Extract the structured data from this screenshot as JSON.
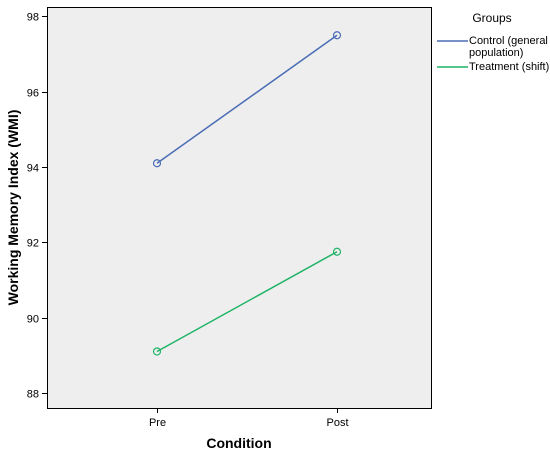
{
  "chart_data": {
    "type": "line",
    "xlabel": "Condition",
    "ylabel": "Working Memory Index (WMI)",
    "categories": [
      "Pre",
      "Post"
    ],
    "ylim": [
      87.6,
      98.25
    ],
    "yticks": [
      88,
      90,
      92,
      94,
      96,
      98
    ],
    "grid": false,
    "legend": {
      "title": "Groups",
      "placement": "outside-top-right"
    },
    "marker": "circle-open",
    "series": [
      {
        "name": "Control (general population)",
        "name_lines": [
          "Control (general",
          "population)"
        ],
        "color": "#4a6db5",
        "values": [
          94.1,
          97.5
        ]
      },
      {
        "name": "Treatment (shift)",
        "name_lines": [
          "Treatment (shift)"
        ],
        "color": "#1fb466",
        "values": [
          89.1,
          91.75
        ]
      }
    ],
    "plot_background": "#eeeeee"
  }
}
